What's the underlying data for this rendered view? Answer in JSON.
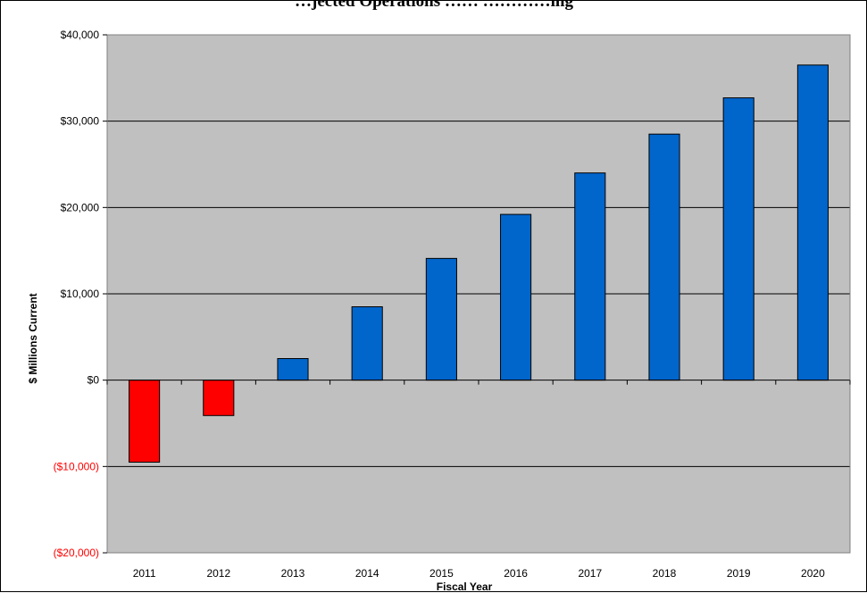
{
  "chart_data": {
    "type": "bar",
    "title": "…jected Operations …… …………ing",
    "xlabel": "Fiscal Year",
    "ylabel": "$ Millions Current",
    "categories": [
      "2011",
      "2012",
      "2013",
      "2014",
      "2015",
      "2016",
      "2017",
      "2018",
      "2019",
      "2020"
    ],
    "values": [
      -9500,
      -4100,
      2500,
      8500,
      14100,
      19200,
      24000,
      28500,
      32700,
      36500
    ],
    "ylim": [
      -20000,
      40000
    ],
    "ytick_values": [
      40000,
      30000,
      20000,
      10000,
      0,
      -10000,
      -20000
    ],
    "ytick_labels": [
      "$40,000",
      "$30,000",
      "$20,000",
      "$10,000",
      "$0",
      "($10,000)",
      "($20,000)"
    ],
    "grid": true,
    "legend": "none",
    "colors": {
      "positive": "#0066cc",
      "negative": "#ff0000",
      "negative_label": "#ff0000",
      "plot_background": "#c0c0c0"
    }
  }
}
